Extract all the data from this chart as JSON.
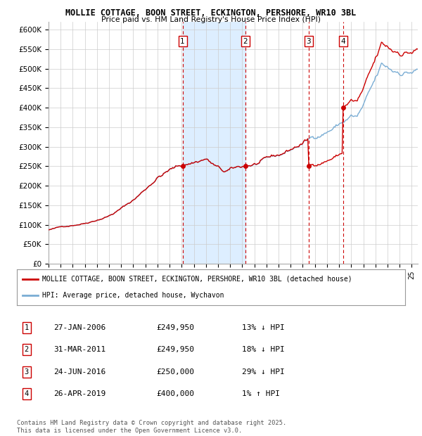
{
  "title1": "MOLLIE COTTAGE, BOON STREET, ECKINGTON, PERSHORE, WR10 3BL",
  "title2": "Price paid vs. HM Land Registry's House Price Index (HPI)",
  "xlim_start": 1995.0,
  "xlim_end": 2025.5,
  "ylim_min": 0,
  "ylim_max": 620000,
  "yticks": [
    0,
    50000,
    100000,
    150000,
    200000,
    250000,
    300000,
    350000,
    400000,
    450000,
    500000,
    550000,
    600000
  ],
  "ytick_labels": [
    "£0",
    "£50K",
    "£100K",
    "£150K",
    "£200K",
    "£250K",
    "£300K",
    "£350K",
    "£400K",
    "£450K",
    "£500K",
    "£550K",
    "£600K"
  ],
  "sale_dates": [
    2006.074,
    2011.247,
    2016.479,
    2019.321
  ],
  "sale_prices": [
    249950,
    249950,
    250000,
    400000
  ],
  "sale_labels": [
    "1",
    "2",
    "3",
    "4"
  ],
  "red_line_color": "#cc0000",
  "blue_line_color": "#7aadd4",
  "shade_color": "#ddeeff",
  "grid_color": "#cccccc",
  "background_color": "#ffffff",
  "legend_red": "MOLLIE COTTAGE, BOON STREET, ECKINGTON, PERSHORE, WR10 3BL (detached house)",
  "legend_blue": "HPI: Average price, detached house, Wychavon",
  "table_rows": [
    [
      "1",
      "27-JAN-2006",
      "£249,950",
      "13% ↓ HPI"
    ],
    [
      "2",
      "31-MAR-2011",
      "£249,950",
      "18% ↓ HPI"
    ],
    [
      "3",
      "24-JUN-2016",
      "£250,000",
      "29% ↓ HPI"
    ],
    [
      "4",
      "26-APR-2019",
      "£400,000",
      "1% ↑ HPI"
    ]
  ],
  "footer": "Contains HM Land Registry data © Crown copyright and database right 2025.\nThis data is licensed under the Open Government Licence v3.0."
}
